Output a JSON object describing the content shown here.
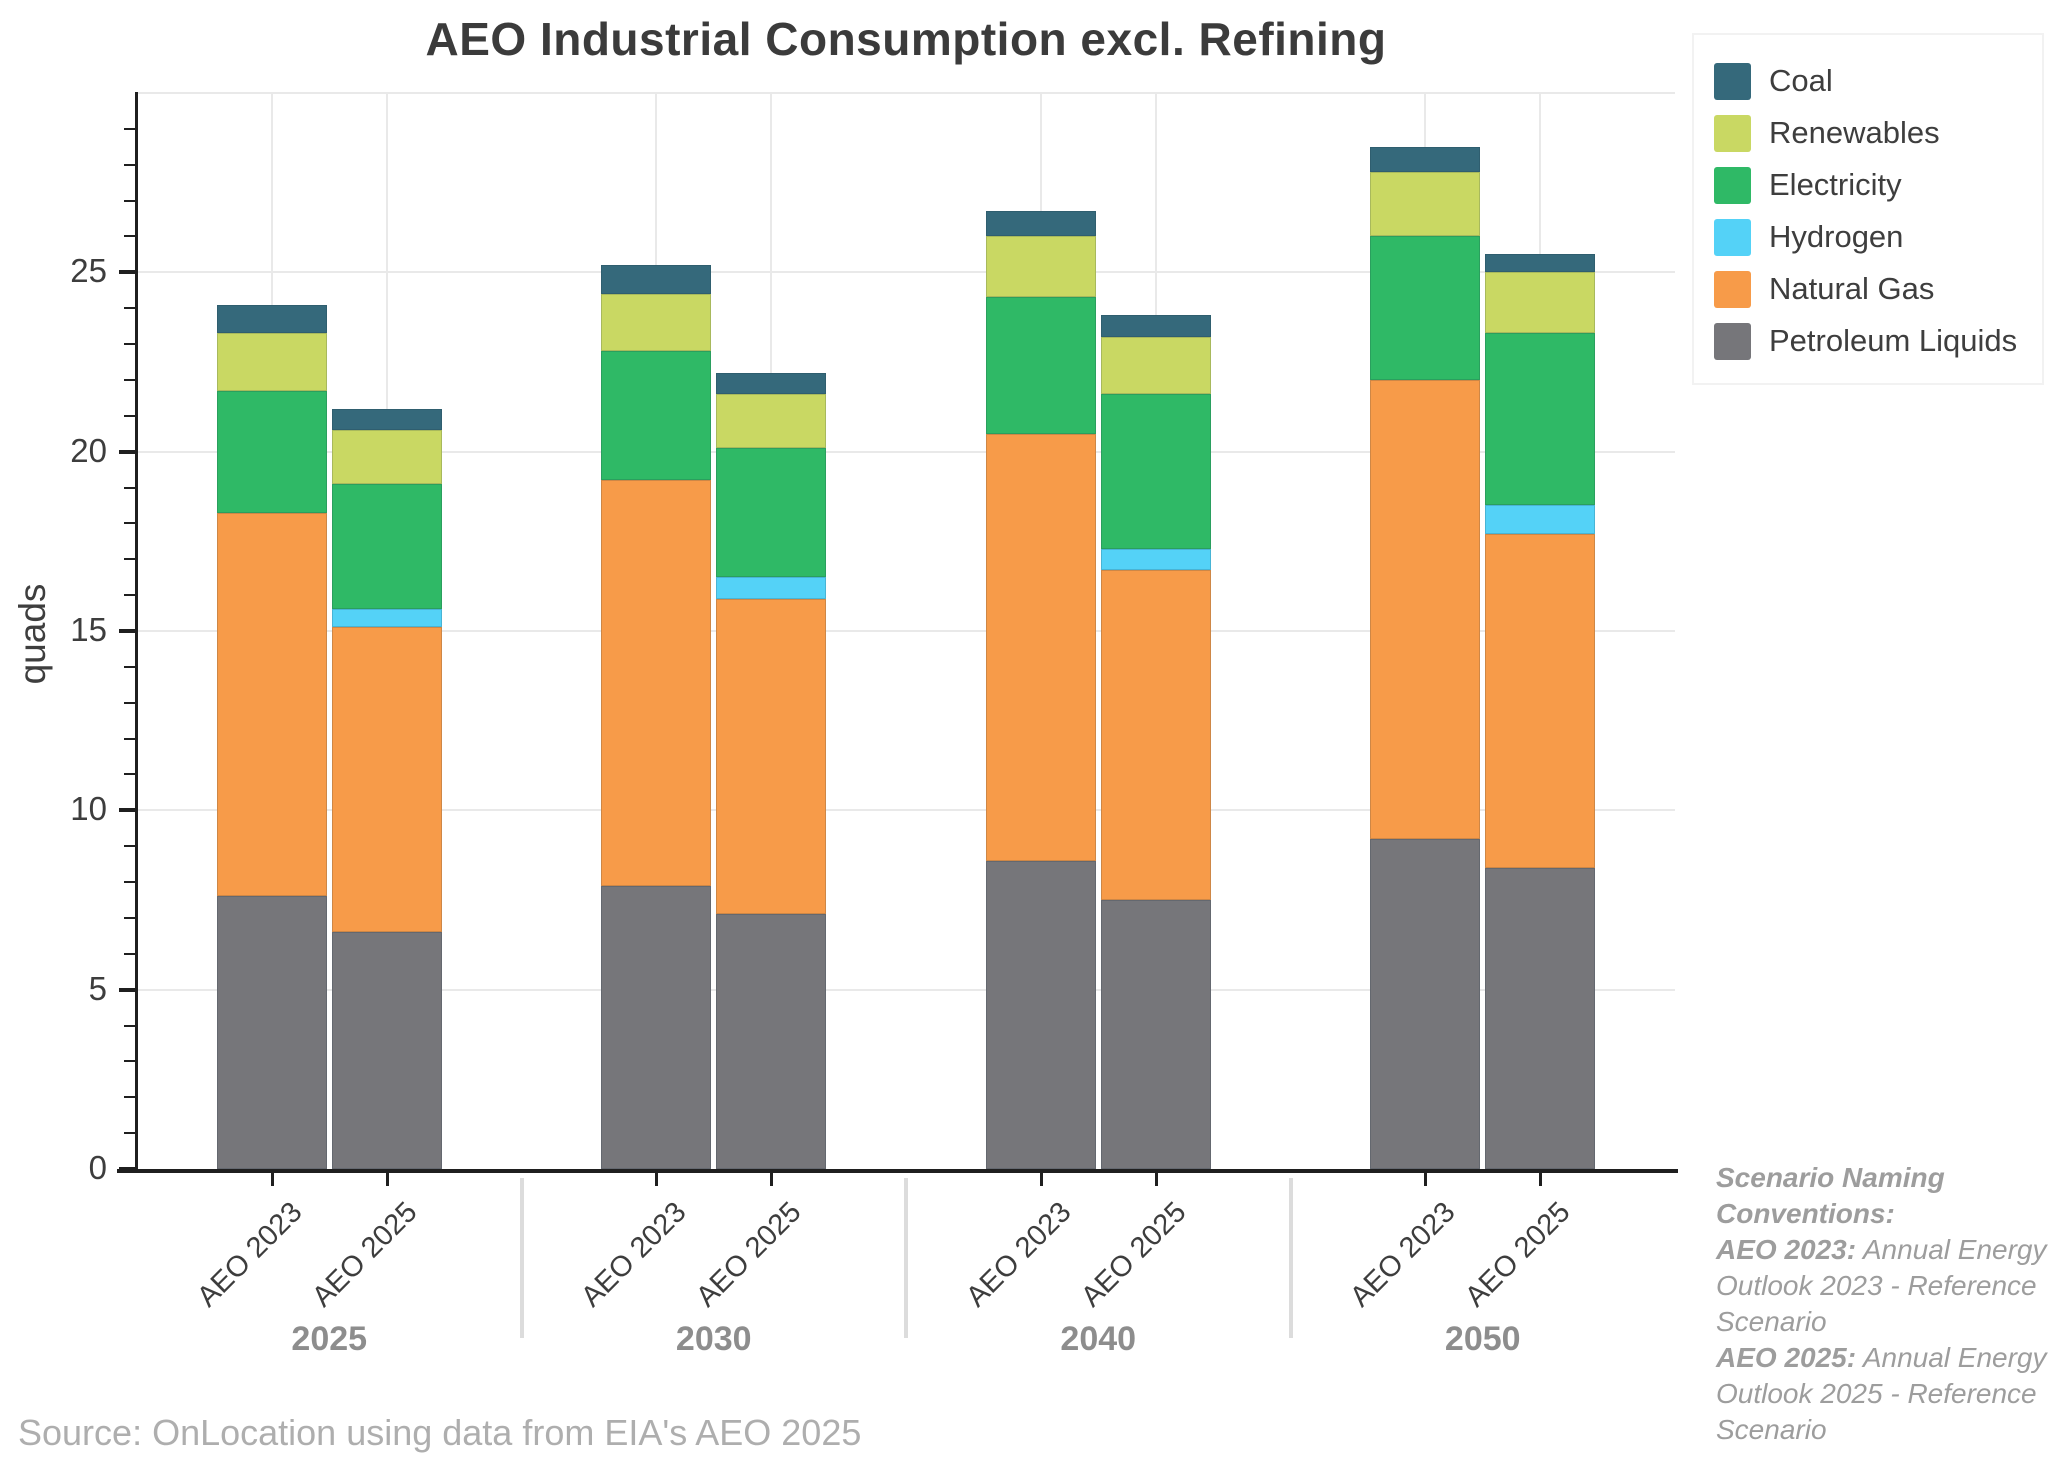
{
  "title": "AEO Industrial Consumption excl. Refining",
  "source": {
    "text": "Source: OnLocation using data from EIA's AEO 2025"
  },
  "notes": {
    "heading": "Scenario Naming Conventions:",
    "entries": [
      {
        "term": "AEO 2023:",
        "text": " Annual Energy Outlook 2023 - Reference Scenario"
      },
      {
        "term": "AEO 2025:",
        "text": " Annual Energy Outlook 2025 - Reference Scenario"
      }
    ]
  },
  "colors": {
    "Coal": "#35697b",
    "Renewables": "#c9d863",
    "Electricity": "#2fb966",
    "Hydrogen": "#54d2f7",
    "Natural Gas": "#f79b49",
    "Petroleum Liquids": "#76767a"
  },
  "chart_data": {
    "type": "bar",
    "stacked": true,
    "title": "AEO Industrial Consumption excl. Refining",
    "ylabel": "quads",
    "ylim": [
      0,
      30
    ],
    "ytick_step": 5,
    "ytick_labels": [
      "0",
      "5",
      "10",
      "15",
      "20",
      "25"
    ],
    "grid": true,
    "legend_position": "top-right",
    "categories": [
      "2025",
      "2030",
      "2040",
      "2050"
    ],
    "scenarios": [
      "AEO 2023",
      "AEO 2025"
    ],
    "stack_order": [
      "Petroleum Liquids",
      "Natural Gas",
      "Hydrogen",
      "Electricity",
      "Renewables",
      "Coal"
    ],
    "legend_order": [
      "Coal",
      "Renewables",
      "Electricity",
      "Hydrogen",
      "Natural Gas",
      "Petroleum Liquids"
    ],
    "values": {
      "2025": {
        "AEO 2023": {
          "Petroleum Liquids": 7.6,
          "Natural Gas": 10.7,
          "Hydrogen": 0,
          "Electricity": 3.4,
          "Renewables": 1.6,
          "Coal": 0.8
        },
        "AEO 2025": {
          "Petroleum Liquids": 6.6,
          "Natural Gas": 8.5,
          "Hydrogen": 0.5,
          "Electricity": 3.5,
          "Renewables": 1.5,
          "Coal": 0.6
        }
      },
      "2030": {
        "AEO 2023": {
          "Petroleum Liquids": 7.9,
          "Natural Gas": 11.3,
          "Hydrogen": 0,
          "Electricity": 3.6,
          "Renewables": 1.6,
          "Coal": 0.8
        },
        "AEO 2025": {
          "Petroleum Liquids": 7.1,
          "Natural Gas": 8.8,
          "Hydrogen": 0.6,
          "Electricity": 3.6,
          "Renewables": 1.5,
          "Coal": 0.6
        }
      },
      "2040": {
        "AEO 2023": {
          "Petroleum Liquids": 8.6,
          "Natural Gas": 11.9,
          "Hydrogen": 0,
          "Electricity": 3.8,
          "Renewables": 1.7,
          "Coal": 0.7
        },
        "AEO 2025": {
          "Petroleum Liquids": 7.5,
          "Natural Gas": 9.2,
          "Hydrogen": 0.6,
          "Electricity": 4.3,
          "Renewables": 1.6,
          "Coal": 0.6
        }
      },
      "2050": {
        "AEO 2023": {
          "Petroleum Liquids": 9.2,
          "Natural Gas": 12.8,
          "Hydrogen": 0,
          "Electricity": 4.0,
          "Renewables": 1.8,
          "Coal": 0.7
        },
        "AEO 2025": {
          "Petroleum Liquids": 8.4,
          "Natural Gas": 9.3,
          "Hydrogen": 0.8,
          "Electricity": 4.8,
          "Renewables": 1.7,
          "Coal": 0.5
        }
      }
    },
    "totals": {
      "2025": {
        "AEO 2023": 24.1,
        "AEO 2025": 21.2
      },
      "2030": {
        "AEO 2023": 25.2,
        "AEO 2025": 22.2
      },
      "2040": {
        "AEO 2023": 26.7,
        "AEO 2025": 23.8
      },
      "2050": {
        "AEO 2023": 28.5,
        "AEO 2025": 25.5
      }
    }
  }
}
